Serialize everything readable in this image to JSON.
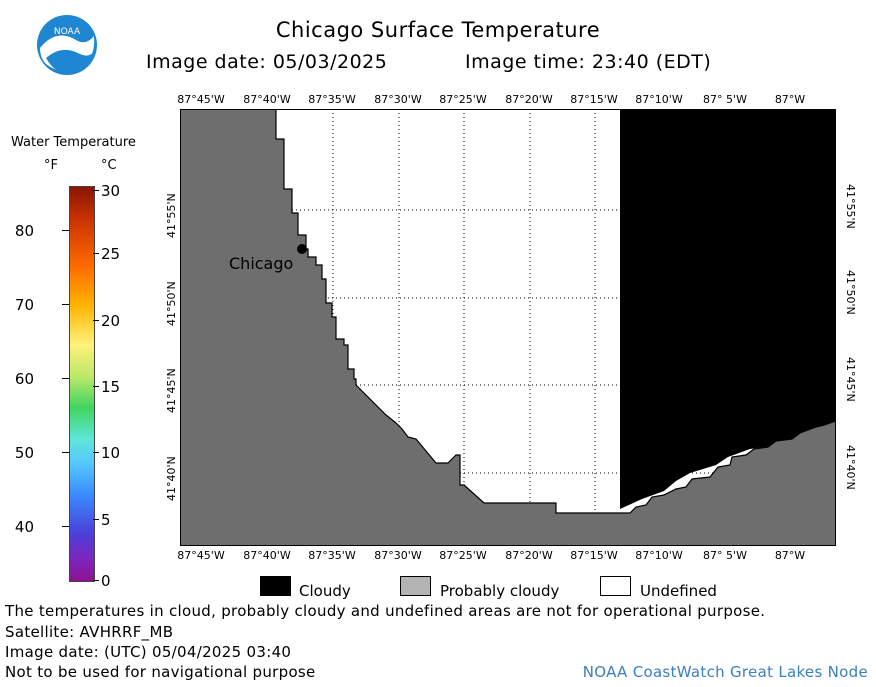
{
  "header": {
    "title": "Chicago Surface Temperature",
    "image_date": "Image date: 05/03/2025",
    "image_time": "Image time: 23:40 (EDT)",
    "logo_text": "NOAA"
  },
  "map": {
    "lon_labels_top": [
      "87°45'W",
      "87°40'W",
      "87°35'W",
      "87°30'W",
      "87°25'W",
      "87°20'W",
      "87°15'W",
      "87°10'W",
      "87° 5'W",
      "87°W"
    ],
    "lon_labels_bottom": [
      "87°45'W",
      "87°40'W",
      "87°35'W",
      "87°30'W",
      "87°25'W",
      "87°20'W",
      "87°15'W",
      "87°10'W",
      "87° 5'W",
      "87°W"
    ],
    "lat_labels": [
      "41°55'N",
      "41°50'N",
      "41°45'N",
      "41°40'N"
    ],
    "city_label": "Chicago",
    "colors": {
      "land": "#6e6e6e",
      "cloudy": "#000000",
      "undefined": "#ffffff",
      "grid": "#000000"
    }
  },
  "colorbar": {
    "title": "Water Temperature",
    "unit_f": "°F",
    "unit_c": "°C",
    "ticks_f": [
      "80",
      "70",
      "60",
      "50",
      "40"
    ],
    "ticks_c": [
      "30",
      "25",
      "20",
      "15",
      "10",
      "5",
      "0"
    ]
  },
  "legend": {
    "items": [
      {
        "label": "Cloudy",
        "color": "#000000"
      },
      {
        "label": "Probably cloudy",
        "color": "#b4b4b4"
      },
      {
        "label": "Undefined",
        "color": "#ffffff"
      }
    ]
  },
  "footer": {
    "disclaimer": "The temperatures in cloud, probably cloudy and undefined areas are not for operational purpose.",
    "satellite": "Satellite: AVHRRF_MB",
    "utc_date": "Image date: (UTC) 05/04/2025  03:40",
    "nav_warning": "Not to be used for navigational purpose",
    "credit": "NOAA CoastWatch Great Lakes Node"
  }
}
